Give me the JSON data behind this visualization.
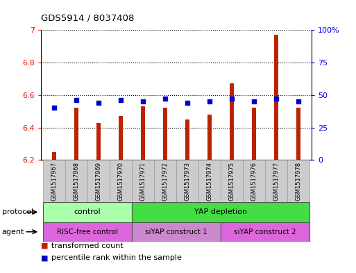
{
  "title": "GDS5914 / 8037408",
  "samples": [
    "GSM1517967",
    "GSM1517968",
    "GSM1517969",
    "GSM1517970",
    "GSM1517971",
    "GSM1517972",
    "GSM1517973",
    "GSM1517974",
    "GSM1517975",
    "GSM1517976",
    "GSM1517977",
    "GSM1517978"
  ],
  "transformed_counts": [
    6.25,
    6.52,
    6.43,
    6.47,
    6.53,
    6.52,
    6.45,
    6.48,
    6.67,
    6.52,
    6.97,
    6.52
  ],
  "percentile_ranks": [
    40,
    46,
    44,
    46,
    45,
    47,
    44,
    45,
    47,
    45,
    47,
    45
  ],
  "bar_color": "#bb2200",
  "dot_color": "#0000cc",
  "ylim_left": [
    6.2,
    7.0
  ],
  "ylim_right": [
    0,
    100
  ],
  "yticks_left": [
    6.2,
    6.4,
    6.6,
    6.8,
    7.0
  ],
  "ytick_labels_left": [
    "6.2",
    "6.4",
    "6.6",
    "6.8",
    "7"
  ],
  "yticks_right": [
    0,
    25,
    50,
    75,
    100
  ],
  "ytick_labels_right": [
    "0",
    "25",
    "50",
    "75",
    "100%"
  ],
  "protocol_groups": [
    {
      "label": "control",
      "start": 0,
      "end": 4,
      "color": "#aaffaa"
    },
    {
      "label": "YAP depletion",
      "start": 4,
      "end": 12,
      "color": "#44dd44"
    }
  ],
  "agent_groups": [
    {
      "label": "RISC-free control",
      "start": 0,
      "end": 4,
      "color": "#dd66dd"
    },
    {
      "label": "siYAP construct 1",
      "start": 4,
      "end": 8,
      "color": "#cc88cc"
    },
    {
      "label": "siYAP construct 2",
      "start": 8,
      "end": 12,
      "color": "#dd66dd"
    }
  ],
  "legend_items": [
    {
      "label": "transformed count",
      "color": "#bb2200"
    },
    {
      "label": "percentile rank within the sample",
      "color": "#0000cc"
    }
  ],
  "protocol_label": "protocol",
  "agent_label": "agent",
  "bar_baseline": 6.2,
  "bar_width": 0.18,
  "dot_size": 18,
  "xlabel_gray": "#cccccc",
  "fig_bg": "#ffffff"
}
